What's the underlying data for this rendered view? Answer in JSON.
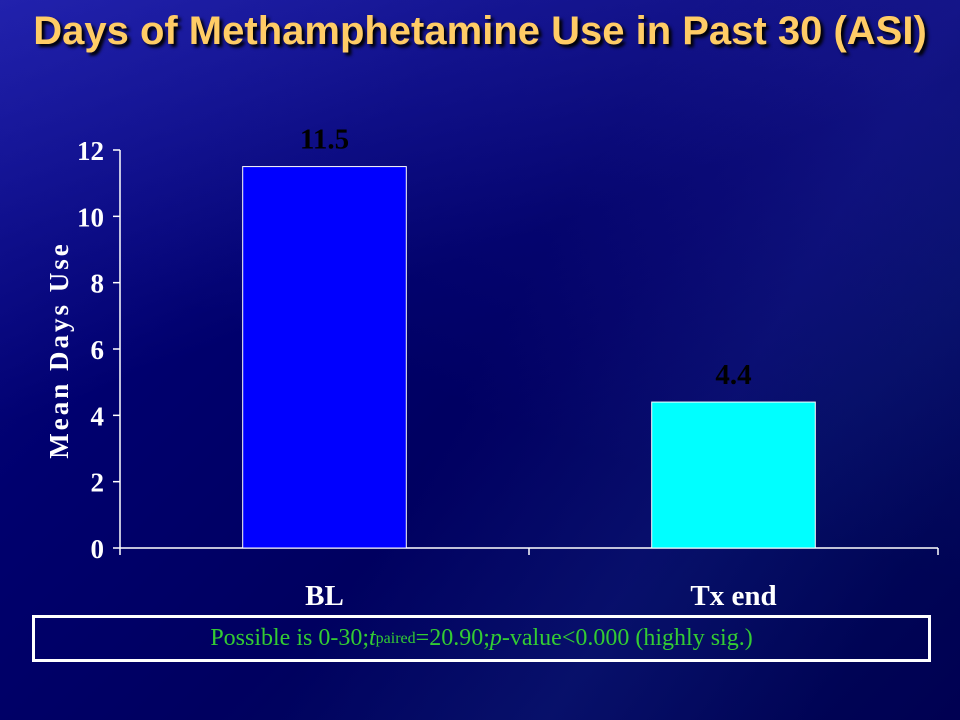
{
  "title": "Days of Methamphetamine Use in Past 30 (ASI)",
  "chart_data": {
    "type": "bar",
    "categories": [
      "BL",
      "Tx end"
    ],
    "values": [
      11.5,
      4.4
    ],
    "data_labels": [
      "11.5",
      "4.4"
    ],
    "title": "Days of Methamphetamine Use in Past 30 (ASI)",
    "xlabel": "",
    "ylabel": "Mean Days Use",
    "ylim": [
      0,
      12
    ],
    "yticks": [
      0,
      2,
      4,
      6,
      8,
      10,
      12
    ],
    "grid": false,
    "legend": "none",
    "bar_colors": [
      "#0000ff",
      "#00ffff"
    ]
  },
  "note": {
    "prefix": "Possible is 0-30; ",
    "t_symbol": "t",
    "t_subscript": "paired",
    "t_value": "=20.90; ",
    "p_symbol": "p",
    "p_rest": "-value<0.000 (highly sig.)"
  },
  "colors": {
    "title": "#ffcc66",
    "axis": "#ffffff",
    "note_text": "#33cc33"
  }
}
